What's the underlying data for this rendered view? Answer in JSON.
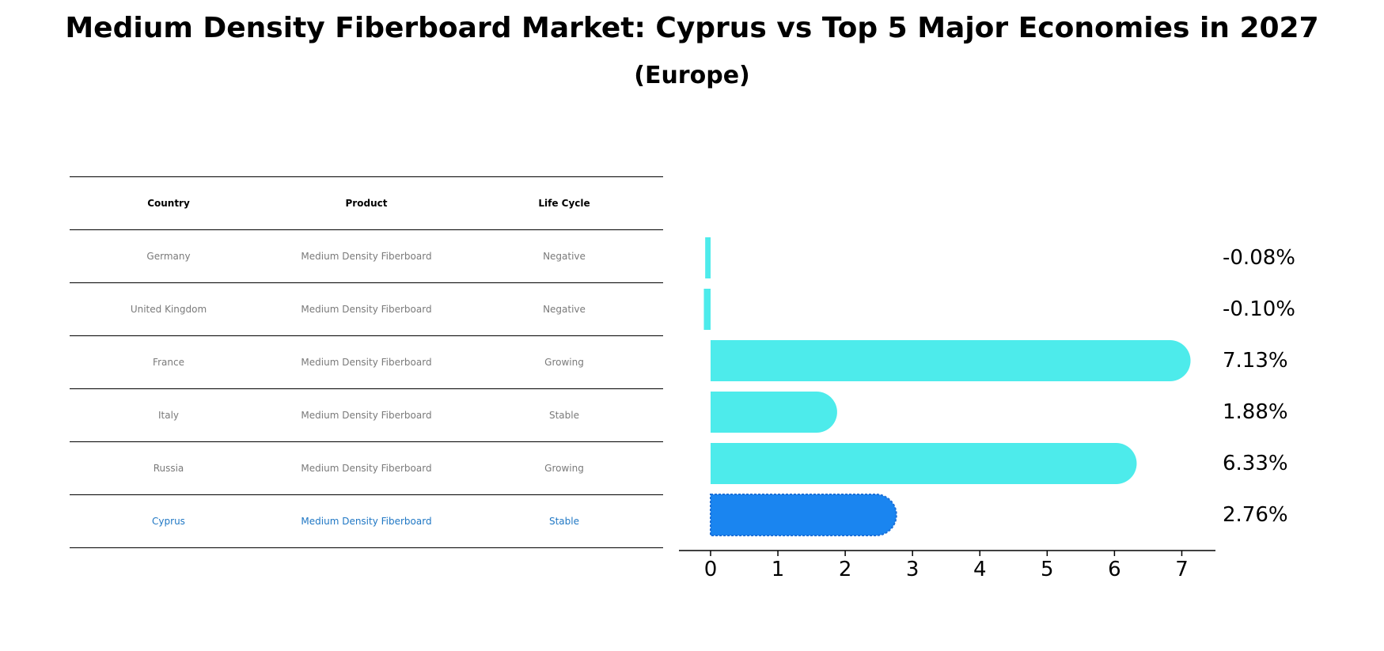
{
  "title": "Medium Density Fiberboard Market: Cyprus vs Top 5 Major Economies in 2027",
  "subtitle": "(Europe)",
  "table": {
    "headers": [
      "Country",
      "Product",
      "Life Cycle"
    ],
    "rows": [
      {
        "country": "Germany",
        "product": "Medium Density Fiberboard",
        "life_cycle": "Negative"
      },
      {
        "country": "United Kingdom",
        "product": "Medium Density Fiberboard",
        "life_cycle": "Negative"
      },
      {
        "country": "France",
        "product": "Medium Density Fiberboard",
        "life_cycle": "Growing"
      },
      {
        "country": "Italy",
        "product": "Medium Density Fiberboard",
        "life_cycle": "Stable"
      },
      {
        "country": "Russia",
        "product": "Medium Density Fiberboard",
        "life_cycle": "Growing"
      },
      {
        "country": "Cyprus",
        "product": "Medium Density Fiberboard",
        "life_cycle": "Stable"
      }
    ]
  },
  "colors": {
    "bar": "#4DEBEB",
    "highlight_bar": "#1A85F0",
    "highlight_text": "#1F77C4",
    "muted_text": "#7A7A7A"
  },
  "chart_data": {
    "type": "bar",
    "orientation": "horizontal",
    "categories": [
      "Germany",
      "United Kingdom",
      "France",
      "Italy",
      "Russia",
      "Cyprus"
    ],
    "values": [
      -0.08,
      -0.1,
      7.13,
      1.88,
      6.33,
      2.76
    ],
    "value_labels": [
      "-0.08%",
      "-0.10%",
      "7.13%",
      "1.88%",
      "6.33%",
      "2.76%"
    ],
    "highlight": "Cyprus",
    "xlim": [
      -0.47,
      7.5
    ],
    "xticks": [
      0,
      1,
      2,
      3,
      4,
      5,
      6,
      7
    ],
    "title": "",
    "xlabel": "",
    "ylabel": "",
    "grid": false
  }
}
